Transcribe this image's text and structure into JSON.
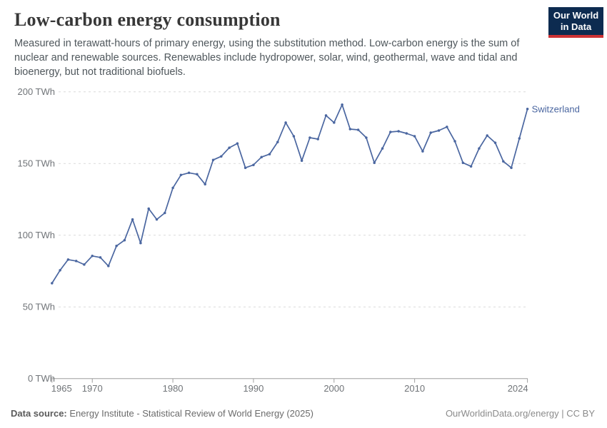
{
  "header": {
    "title": "Low-carbon energy consumption",
    "subtitle_lines": [
      "Measured in terawatt-hours of primary energy, using the substitution method. Low-carbon energy is the sum of",
      "nuclear and renewable sources. Renewables include hydropower, solar, wind, geothermal, wave and tidal and",
      "bioenergy, but not traditional biofuels."
    ],
    "logo": {
      "line1": "Our World",
      "line2": "in Data",
      "bg_color": "#0d2b50",
      "accent_color": "#cd3235"
    }
  },
  "chart_data": {
    "type": "line",
    "title": "Low-carbon energy consumption",
    "unit": "TWh",
    "xlabel": "",
    "ylabel": "",
    "xlim": [
      1965,
      2024
    ],
    "ylim": [
      0,
      200
    ],
    "grid": "horizontal-dashed",
    "legend": "end-of-line-label",
    "x_ticks": [
      1965,
      1970,
      1980,
      1990,
      2000,
      2010,
      2024
    ],
    "y_ticks": [
      0,
      50,
      100,
      150,
      200
    ],
    "y_tick_labels": [
      "0 TWh",
      "50 TWh",
      "100 TWh",
      "150 TWh",
      "200 TWh"
    ],
    "colors": {
      "gridline": "#d9d9d9",
      "axis": "#9e9e9e",
      "tick_label": "#707478"
    },
    "x": [
      1965,
      1966,
      1967,
      1968,
      1969,
      1970,
      1971,
      1972,
      1973,
      1974,
      1975,
      1976,
      1977,
      1978,
      1979,
      1980,
      1981,
      1982,
      1983,
      1984,
      1985,
      1986,
      1987,
      1988,
      1989,
      1990,
      1991,
      1992,
      1993,
      1994,
      1995,
      1996,
      1997,
      1998,
      1999,
      2000,
      2001,
      2002,
      2003,
      2004,
      2005,
      2006,
      2007,
      2008,
      2009,
      2010,
      2011,
      2012,
      2013,
      2014,
      2015,
      2016,
      2017,
      2018,
      2019,
      2020,
      2021,
      2022,
      2023,
      2024
    ],
    "series": [
      {
        "name": "Switzerland",
        "color": "#4a66a0",
        "values": [
          66.5,
          75.5,
          83,
          82,
          79.5,
          85.5,
          84.5,
          78.5,
          92.5,
          96.5,
          111,
          94.5,
          118.5,
          111,
          115.5,
          133,
          142,
          143.5,
          142.5,
          135.5,
          152.5,
          155,
          161,
          164,
          147,
          149,
          154.5,
          156.5,
          165,
          178.5,
          169,
          152,
          168,
          167,
          183.5,
          178.5,
          191,
          174,
          173.5,
          168,
          150.5,
          160.5,
          172,
          172.5,
          171,
          169,
          158.5,
          171.5,
          173,
          175.5,
          165.5,
          150.5,
          148,
          160.5,
          169.5,
          164.5,
          151.5,
          147,
          167.5,
          188
        ]
      }
    ]
  },
  "footer": {
    "datasource_label": "Data source:",
    "datasource_value": "Energy Institute - Statistical Review of World Energy (2025)",
    "attribution": "OurWorldinData.org/energy | CC BY"
  }
}
